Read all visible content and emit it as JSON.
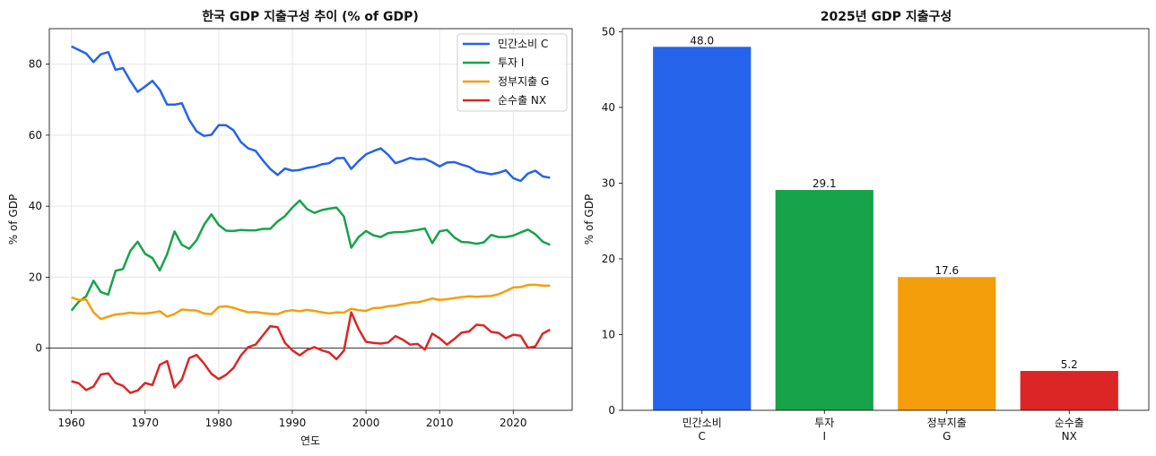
{
  "chart_data": [
    {
      "type": "line",
      "title": "한국 GDP 지출구성 추이 (% of GDP)",
      "xlabel": "연도",
      "ylabel": "% of GDP",
      "xlim": [
        1957,
        2028
      ],
      "ylim": [
        -17.5,
        90
      ],
      "xticks": [
        1960,
        1970,
        1980,
        1990,
        2000,
        2010,
        2020
      ],
      "yticks": [
        0,
        20,
        40,
        60,
        80
      ],
      "grid": true,
      "legend_position": "top-right",
      "zero_line": true,
      "x": [
        1960,
        1961,
        1962,
        1963,
        1964,
        1965,
        1966,
        1967,
        1968,
        1969,
        1970,
        1971,
        1972,
        1973,
        1974,
        1975,
        1976,
        1977,
        1978,
        1979,
        1980,
        1981,
        1982,
        1983,
        1984,
        1985,
        1986,
        1987,
        1988,
        1989,
        1990,
        1991,
        1992,
        1993,
        1994,
        1995,
        1996,
        1997,
        1998,
        1999,
        2000,
        2001,
        2002,
        2003,
        2004,
        2005,
        2006,
        2007,
        2008,
        2009,
        2010,
        2011,
        2012,
        2013,
        2014,
        2015,
        2016,
        2017,
        2018,
        2019,
        2020,
        2021,
        2022,
        2023,
        2024,
        2025
      ],
      "series": [
        {
          "name": "민간소비 C",
          "color": "#2563eb",
          "values": [
            85,
            84,
            83,
            80.6,
            82.8,
            83.4,
            78.4,
            78.9,
            75.3,
            72.2,
            73.7,
            75.3,
            72.8,
            68.6,
            68.6,
            69,
            64.3,
            61.1,
            59.8,
            60.1,
            62.8,
            62.8,
            61.4,
            58.1,
            56.3,
            55.6,
            52.9,
            50.5,
            48.8,
            50.6,
            50,
            50.2,
            50.8,
            51.1,
            51.8,
            52.1,
            53.5,
            53.6,
            50.5,
            52.7,
            54.6,
            55.5,
            56.3,
            54.5,
            52.1,
            52.8,
            53.6,
            53.2,
            53.3,
            52.4,
            51.2,
            52.3,
            52.4,
            51.7,
            51.1,
            49.8,
            49.4,
            49,
            49.4,
            50.1,
            47.9,
            47.1,
            49.2,
            50,
            48.4,
            48
          ]
        },
        {
          "name": "투자 I",
          "color": "#16a34a",
          "values": [
            10.6,
            13.1,
            14.6,
            19,
            15.8,
            15.1,
            21.8,
            22.3,
            27.4,
            30,
            26.6,
            25.4,
            21.9,
            26.5,
            32.9,
            29.1,
            28,
            30.4,
            34.7,
            37.7,
            34.7,
            33.1,
            33,
            33.3,
            33.2,
            33.2,
            33.6,
            33.6,
            35.7,
            37.2,
            39.6,
            41.6,
            39.2,
            38.1,
            38.9,
            39.3,
            39.6,
            37.1,
            28.3,
            31.3,
            33,
            31.8,
            31.3,
            32.4,
            32.7,
            32.7,
            33,
            33.3,
            33.7,
            29.6,
            32.9,
            33.3,
            31.2,
            29.9,
            29.8,
            29.4,
            29.8,
            31.9,
            31.3,
            31.3,
            31.7,
            32.6,
            33.4,
            32.1,
            30,
            29.1
          ]
        },
        {
          "name": "정부지출 G",
          "color": "#f59e0b",
          "values": [
            14.3,
            13.6,
            13.7,
            10.1,
            8.2,
            8.9,
            9.5,
            9.7,
            10,
            9.8,
            9.8,
            10,
            10.4,
            8.9,
            9.6,
            10.9,
            10.7,
            10.6,
            9.8,
            9.6,
            11.6,
            11.8,
            11.4,
            10.7,
            10.1,
            10.2,
            9.9,
            9.7,
            9.6,
            10.4,
            10.7,
            10.4,
            10.8,
            10.5,
            10.1,
            9.8,
            10.1,
            10,
            11.1,
            10.7,
            10.5,
            11.3,
            11.4,
            11.8,
            12,
            12.4,
            12.8,
            12.9,
            13.4,
            14,
            13.6,
            13.8,
            14.1,
            14.4,
            14.6,
            14.5,
            14.6,
            14.7,
            15.2,
            16.1,
            17.1,
            17.2,
            17.8,
            17.9,
            17.6,
            17.6
          ]
        },
        {
          "name": "순수출 NX",
          "color": "#dc2626",
          "values": [
            -9.3,
            -9.9,
            -11.8,
            -10.8,
            -7.4,
            -7.1,
            -9.8,
            -10.6,
            -12.6,
            -11.9,
            -9.8,
            -10.4,
            -4.7,
            -3.6,
            -11.1,
            -8.8,
            -2.8,
            -1.9,
            -4.3,
            -7.2,
            -8.7,
            -7.5,
            -5.6,
            -2.1,
            0.3,
            1,
            3.6,
            6.2,
            5.9,
            1.5,
            -0.6,
            -2,
            -0.5,
            0.3,
            -0.6,
            -1.2,
            -3.1,
            -0.7,
            10.1,
            5.4,
            1.8,
            1.5,
            1.3,
            1.6,
            3.4,
            2.4,
            1,
            1.2,
            -0.4,
            4.1,
            2.8,
            1,
            2.6,
            4.4,
            4.7,
            6.6,
            6.4,
            4.6,
            4.3,
            2.8,
            3.8,
            3.5,
            0.1,
            0.5,
            4.1,
            5.2
          ]
        }
      ]
    },
    {
      "type": "bar",
      "title": "2025년 GDP 지출구성",
      "xlabel": "",
      "ylabel": "% of GDP",
      "ylim": [
        0,
        50.4
      ],
      "yticks": [
        0,
        10,
        20,
        30,
        40,
        50
      ],
      "grid": false,
      "categories": [
        {
          "line1": "민간소비",
          "line2": "C"
        },
        {
          "line1": "투자",
          "line2": "I"
        },
        {
          "line1": "정부지출",
          "line2": "G"
        },
        {
          "line1": "순수출",
          "line2": "NX"
        }
      ],
      "values": [
        48.0,
        29.1,
        17.6,
        5.2
      ],
      "data_labels": [
        "48.0",
        "29.1",
        "17.6",
        "5.2"
      ],
      "colors": [
        "#2563eb",
        "#16a34a",
        "#f59e0b",
        "#dc2626"
      ]
    }
  ]
}
